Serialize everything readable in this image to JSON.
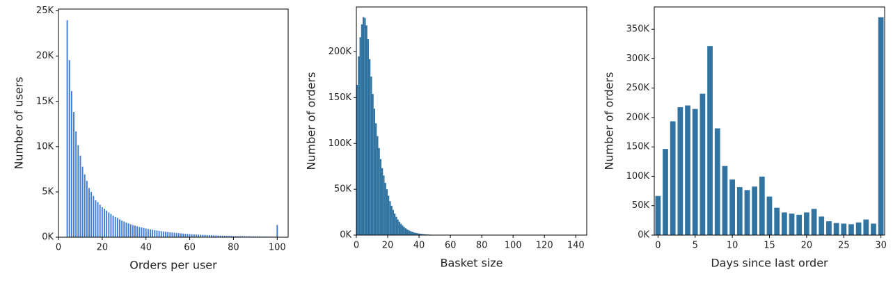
{
  "chart_data": [
    {
      "type": "bar",
      "xlabel": "Orders per user",
      "ylabel": "Number of users",
      "color": "#3f7bd6",
      "x": [
        4,
        5,
        6,
        7,
        8,
        9,
        10,
        11,
        12,
        13,
        14,
        15,
        16,
        17,
        18,
        19,
        20,
        21,
        22,
        23,
        24,
        25,
        26,
        27,
        28,
        29,
        30,
        31,
        32,
        33,
        34,
        35,
        36,
        37,
        38,
        39,
        40,
        41,
        42,
        43,
        44,
        45,
        46,
        47,
        48,
        49,
        50,
        51,
        52,
        53,
        54,
        55,
        56,
        57,
        58,
        59,
        60,
        61,
        62,
        63,
        64,
        65,
        66,
        67,
        68,
        69,
        70,
        71,
        72,
        73,
        74,
        75,
        76,
        77,
        78,
        79,
        80,
        81,
        82,
        83,
        84,
        85,
        86,
        87,
        88,
        89,
        90,
        91,
        92,
        93,
        94,
        95,
        96,
        97,
        98,
        99,
        100
      ],
      "values": [
        23986,
        19590,
        16165,
        13850,
        11700,
        10190,
        9032,
        7815,
        6952,
        6236,
        5451,
        5022,
        4572,
        4101,
        3888,
        3615,
        3326,
        3167,
        2960,
        2745,
        2584,
        2399,
        2265,
        2147,
        1985,
        1855,
        1752,
        1640,
        1540,
        1455,
        1370,
        1300,
        1220,
        1150,
        1095,
        1040,
        985,
        935,
        890,
        845,
        800,
        760,
        725,
        690,
        655,
        625,
        595,
        565,
        540,
        515,
        490,
        468,
        445,
        425,
        405,
        388,
        370,
        353,
        337,
        322,
        308,
        295,
        282,
        270,
        258,
        247,
        236,
        226,
        217,
        208,
        199,
        191,
        183,
        175,
        168,
        161,
        155,
        149,
        143,
        137,
        132,
        127,
        122,
        117,
        113,
        109,
        105,
        101,
        97,
        94,
        91,
        88,
        85,
        82,
        80,
        78,
        1374
      ],
      "xlim": [
        0,
        105
      ],
      "xticks": [
        0,
        20,
        40,
        60,
        80,
        100
      ],
      "ylim": [
        0,
        25200
      ],
      "yticks": [
        {
          "value": 0,
          "label": "0K"
        },
        {
          "value": 5000,
          "label": "5K"
        },
        {
          "value": 10000,
          "label": "10K"
        },
        {
          "value": 15000,
          "label": "15K"
        },
        {
          "value": 20000,
          "label": "20K"
        },
        {
          "value": 25000,
          "label": "25K"
        }
      ]
    },
    {
      "type": "histogram",
      "xlabel": "Basket size",
      "ylabel": "Number of orders",
      "color": "#3274a1",
      "bins": [
        0,
        1,
        2,
        3,
        4,
        5,
        6,
        7,
        8,
        9,
        10,
        11,
        12,
        13,
        14,
        15,
        16,
        17,
        18,
        19,
        20,
        21,
        22,
        23,
        24,
        25,
        26,
        27,
        28,
        29,
        30,
        31,
        32,
        33,
        34,
        35,
        36,
        37,
        38,
        39,
        40,
        41,
        42,
        43,
        44,
        45,
        46,
        47,
        48,
        49,
        50,
        51,
        52,
        53,
        54,
        55,
        56,
        57,
        58,
        59,
        60,
        61,
        62,
        63,
        64,
        65,
        66,
        67,
        68,
        69,
        70,
        71,
        72,
        73,
        74,
        75,
        76,
        77,
        78,
        79,
        80
      ],
      "counts": [
        164000,
        195000,
        216000,
        230000,
        238000,
        237000,
        229000,
        214000,
        192000,
        173000,
        154000,
        138000,
        122000,
        108000,
        95000,
        83000,
        73000,
        65000,
        57000,
        50000,
        43000,
        37000,
        32000,
        27500,
        23500,
        20000,
        17000,
        14500,
        12300,
        10400,
        8800,
        7400,
        6200,
        5200,
        4400,
        3700,
        3100,
        2600,
        2200,
        1850,
        1550,
        1300,
        1100,
        920,
        770,
        650,
        545,
        460,
        385,
        320,
        270,
        225,
        190,
        160,
        135,
        112,
        94,
        79,
        66,
        55,
        46,
        38,
        32,
        27,
        22,
        18,
        15,
        13,
        11,
        9,
        7,
        6,
        5,
        4,
        4,
        3,
        3,
        2,
        2,
        2
      ],
      "xlim": [
        0,
        147
      ],
      "xticks": [
        0,
        20,
        40,
        60,
        80,
        100,
        120,
        140
      ],
      "ylim": [
        0,
        249000
      ],
      "yticks": [
        {
          "value": 0,
          "label": "0K"
        },
        {
          "value": 50000,
          "label": "50K"
        },
        {
          "value": 100000,
          "label": "100K"
        },
        {
          "value": 150000,
          "label": "150K"
        },
        {
          "value": 200000,
          "label": "200K"
        }
      ]
    },
    {
      "type": "bar",
      "xlabel": "Days since last order",
      "ylabel": "Number of orders",
      "color": "#3274a1",
      "x": [
        0,
        1,
        2,
        3,
        4,
        5,
        6,
        7,
        8,
        9,
        10,
        11,
        12,
        13,
        14,
        15,
        16,
        17,
        18,
        19,
        20,
        21,
        22,
        23,
        24,
        25,
        26,
        27,
        28,
        29,
        30
      ],
      "values": [
        67000,
        147000,
        194000,
        218000,
        221000,
        215000,
        241000,
        322000,
        182000,
        118000,
        95000,
        82000,
        77000,
        83000,
        100000,
        66000,
        47000,
        39000,
        37000,
        35000,
        39000,
        45000,
        32000,
        24000,
        21000,
        20000,
        19000,
        22000,
        27000,
        20000,
        371000
      ],
      "xlim": [
        -0.5,
        30.5
      ],
      "xticks": [
        0,
        5,
        10,
        15,
        20,
        25,
        30
      ],
      "ylim": [
        0,
        388000
      ],
      "yticks": [
        {
          "value": 0,
          "label": "0K"
        },
        {
          "value": 50000,
          "label": "50K"
        },
        {
          "value": 100000,
          "label": "100K"
        },
        {
          "value": 150000,
          "label": "150K"
        },
        {
          "value": 200000,
          "label": "200K"
        },
        {
          "value": 250000,
          "label": "250K"
        },
        {
          "value": 300000,
          "label": "300K"
        },
        {
          "value": 350000,
          "label": "350K"
        }
      ]
    }
  ]
}
